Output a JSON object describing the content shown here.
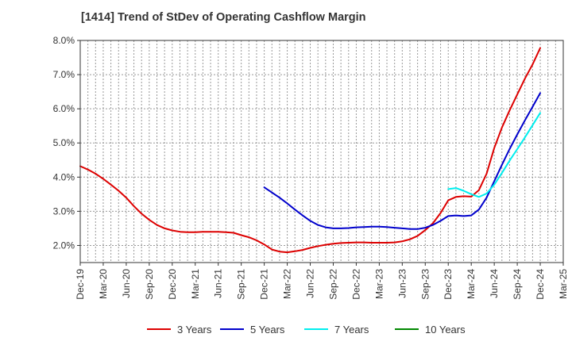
{
  "chart_data": {
    "type": "line",
    "title": "[1414]  Trend of StDev of Operating Cashflow Margin",
    "xlabel": "",
    "ylabel": "",
    "x_ticks": [
      "Dec-19",
      "Mar-20",
      "Jun-20",
      "Sep-20",
      "Dec-20",
      "Mar-21",
      "Jun-21",
      "Sep-21",
      "Dec-21",
      "Mar-22",
      "Jun-22",
      "Sep-22",
      "Dec-22",
      "Mar-23",
      "Jun-23",
      "Sep-23",
      "Dec-23",
      "Mar-24",
      "Jun-24",
      "Sep-24",
      "Dec-24",
      "Mar-25"
    ],
    "y_ticks": [
      "2.0%",
      "3.0%",
      "4.0%",
      "5.0%",
      "6.0%",
      "7.0%",
      "8.0%"
    ],
    "y_tick_values": [
      2.0,
      3.0,
      4.0,
      5.0,
      6.0,
      7.0,
      8.0
    ],
    "ylim": [
      1.5,
      8.0
    ],
    "grid": true,
    "legend_position": "bottom",
    "series": [
      {
        "name": "3 Years",
        "color": "#dd0000",
        "points": [
          [
            "Dec-19",
            4.32
          ],
          [
            "Jan-20",
            4.22
          ],
          [
            "Feb-20",
            4.1
          ],
          [
            "Mar-20",
            3.95
          ],
          [
            "Apr-20",
            3.78
          ],
          [
            "May-20",
            3.6
          ],
          [
            "Jun-20",
            3.4
          ],
          [
            "Jul-20",
            3.15
          ],
          [
            "Aug-20",
            2.93
          ],
          [
            "Sep-20",
            2.75
          ],
          [
            "Oct-20",
            2.6
          ],
          [
            "Nov-20",
            2.5
          ],
          [
            "Dec-20",
            2.44
          ],
          [
            "Jan-21",
            2.4
          ],
          [
            "Feb-21",
            2.39
          ],
          [
            "Mar-21",
            2.39
          ],
          [
            "Apr-21",
            2.4
          ],
          [
            "May-21",
            2.4
          ],
          [
            "Jun-21",
            2.4
          ],
          [
            "Jul-21",
            2.39
          ],
          [
            "Aug-21",
            2.37
          ],
          [
            "Sep-21",
            2.3
          ],
          [
            "Oct-21",
            2.24
          ],
          [
            "Nov-21",
            2.15
          ],
          [
            "Dec-21",
            2.03
          ],
          [
            "Jan-22",
            1.88
          ],
          [
            "Feb-22",
            1.82
          ],
          [
            "Mar-22",
            1.8
          ],
          [
            "Apr-22",
            1.83
          ],
          [
            "May-22",
            1.87
          ],
          [
            "Jun-22",
            1.93
          ],
          [
            "Jul-22",
            1.98
          ],
          [
            "Aug-22",
            2.02
          ],
          [
            "Sep-22",
            2.05
          ],
          [
            "Oct-22",
            2.07
          ],
          [
            "Nov-22",
            2.08
          ],
          [
            "Dec-22",
            2.09
          ],
          [
            "Jan-23",
            2.09
          ],
          [
            "Feb-23",
            2.08
          ],
          [
            "Mar-23",
            2.08
          ],
          [
            "Apr-23",
            2.08
          ],
          [
            "May-23",
            2.09
          ],
          [
            "Jun-23",
            2.12
          ],
          [
            "Jul-23",
            2.18
          ],
          [
            "Aug-23",
            2.28
          ],
          [
            "Sep-23",
            2.45
          ],
          [
            "Oct-23",
            2.65
          ],
          [
            "Nov-23",
            2.95
          ],
          [
            "Dec-23",
            3.32
          ],
          [
            "Jan-24",
            3.42
          ],
          [
            "Feb-24",
            3.44
          ],
          [
            "Mar-24",
            3.43
          ],
          [
            "Apr-24",
            3.62
          ],
          [
            "May-24",
            4.1
          ],
          [
            "Jun-24",
            4.85
          ],
          [
            "Jul-24",
            5.45
          ],
          [
            "Aug-24",
            5.95
          ],
          [
            "Sep-24",
            6.42
          ],
          [
            "Oct-24",
            6.88
          ],
          [
            "Nov-24",
            7.3
          ],
          [
            "Dec-24",
            7.78
          ]
        ]
      },
      {
        "name": "5 Years",
        "color": "#0000cc",
        "points": [
          [
            "Dec-21",
            3.7
          ],
          [
            "Jan-22",
            3.55
          ],
          [
            "Feb-22",
            3.4
          ],
          [
            "Mar-22",
            3.23
          ],
          [
            "Apr-22",
            3.05
          ],
          [
            "May-22",
            2.88
          ],
          [
            "Jun-22",
            2.72
          ],
          [
            "Jul-22",
            2.6
          ],
          [
            "Aug-22",
            2.53
          ],
          [
            "Sep-22",
            2.5
          ],
          [
            "Oct-22",
            2.5
          ],
          [
            "Nov-22",
            2.51
          ],
          [
            "Dec-22",
            2.53
          ],
          [
            "Jan-23",
            2.54
          ],
          [
            "Feb-23",
            2.55
          ],
          [
            "Mar-23",
            2.55
          ],
          [
            "Apr-23",
            2.54
          ],
          [
            "May-23",
            2.52
          ],
          [
            "Jun-23",
            2.5
          ],
          [
            "Jul-23",
            2.48
          ],
          [
            "Aug-23",
            2.48
          ],
          [
            "Sep-23",
            2.52
          ],
          [
            "Oct-23",
            2.6
          ],
          [
            "Nov-23",
            2.72
          ],
          [
            "Dec-23",
            2.86
          ],
          [
            "Jan-24",
            2.88
          ],
          [
            "Feb-24",
            2.86
          ],
          [
            "Mar-24",
            2.88
          ],
          [
            "Apr-24",
            3.05
          ],
          [
            "May-24",
            3.4
          ],
          [
            "Jun-24",
            3.88
          ],
          [
            "Jul-24",
            4.36
          ],
          [
            "Aug-24",
            4.82
          ],
          [
            "Sep-24",
            5.25
          ],
          [
            "Oct-24",
            5.66
          ],
          [
            "Nov-24",
            6.06
          ],
          [
            "Dec-24",
            6.46
          ]
        ]
      },
      {
        "name": "7 Years",
        "color": "#00eeee",
        "points": [
          [
            "Dec-23",
            3.65
          ],
          [
            "Jan-24",
            3.68
          ],
          [
            "Feb-24",
            3.6
          ],
          [
            "Mar-24",
            3.5
          ],
          [
            "Apr-24",
            3.42
          ],
          [
            "May-24",
            3.52
          ],
          [
            "Jun-24",
            3.78
          ],
          [
            "Jul-24",
            4.12
          ],
          [
            "Aug-24",
            4.48
          ],
          [
            "Sep-24",
            4.82
          ],
          [
            "Oct-24",
            5.16
          ],
          [
            "Nov-24",
            5.52
          ],
          [
            "Dec-24",
            5.88
          ]
        ]
      },
      {
        "name": "10 Years",
        "color": "#008800",
        "points": []
      }
    ]
  }
}
